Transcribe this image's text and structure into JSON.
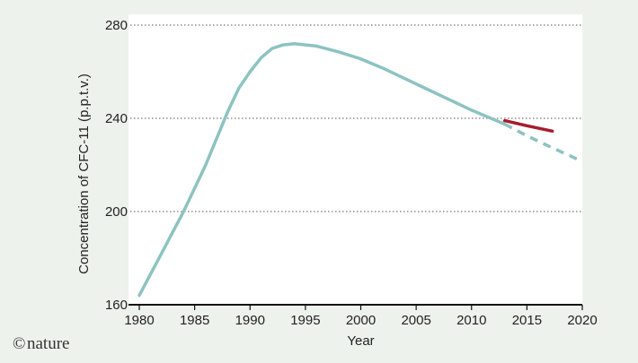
{
  "chart_data": {
    "type": "line",
    "xlabel": "Year",
    "ylabel": "Concentration of CFC-11 (p.p.t.v.)",
    "xlim": [
      1980,
      2020
    ],
    "ylim": [
      160,
      280
    ],
    "x_ticks": [
      "1980",
      "1985",
      "1990",
      "1995",
      "2000",
      "2005",
      "2010",
      "2015",
      "2020"
    ],
    "y_ticks": [
      "160",
      "200",
      "240",
      "280"
    ],
    "grid": "horizontal dotted",
    "series": [
      {
        "color": "#8cc3c1",
        "style": "solid",
        "x": [
          1980,
          1982,
          1984,
          1986,
          1988,
          1989,
          1990,
          1991,
          1992,
          1993,
          1994,
          1995,
          1996,
          1998,
          2000,
          2002,
          2004,
          2006,
          2008,
          2010,
          2012,
          2013
        ],
        "y": [
          164,
          182,
          200,
          220,
          243,
          253,
          260,
          266,
          270,
          271.5,
          272,
          271.5,
          271,
          268.5,
          265.5,
          261.5,
          257,
          252.5,
          248,
          243.5,
          239.5,
          237.5
        ]
      },
      {
        "color": "#8cc3c1",
        "style": "dashed",
        "x": [
          2013,
          2015,
          2017,
          2020
        ],
        "y": [
          237.5,
          232.5,
          228,
          221.5
        ]
      },
      {
        "color": "#a51d2e",
        "style": "solid",
        "x": [
          2013,
          2015,
          2017.3
        ],
        "y": [
          239,
          236.8,
          234.5
        ]
      }
    ]
  },
  "credit": {
    "symbol": "©",
    "text": "nature"
  }
}
